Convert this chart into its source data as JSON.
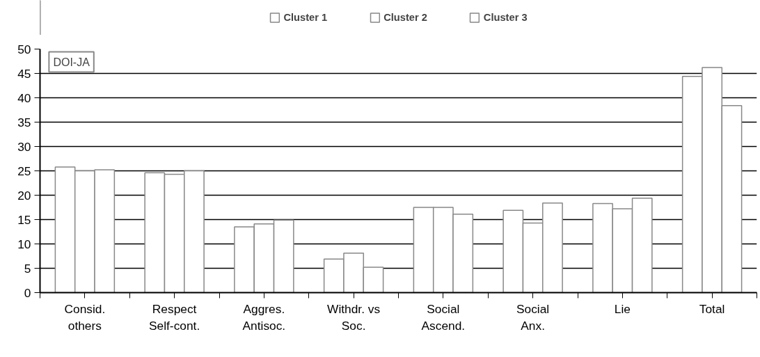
{
  "chart_data": {
    "type": "bar",
    "categories": [
      "Consid.\nothers",
      "Respect\nSelf-cont.",
      "Aggres.\nAntisoc.",
      "Withdr. vs\nSoc.",
      "Social\nAscend.",
      "Social\nAnx.",
      "Lie",
      "Total"
    ],
    "series": [
      {
        "name": "Cluster 1",
        "color": "#ffffff",
        "values": [
          25.8,
          24.6,
          13.5,
          6.9,
          17.5,
          16.9,
          18.3,
          44.4
        ]
      },
      {
        "name": "Cluster 2",
        "color": "#ffffff",
        "values": [
          25.0,
          24.3,
          14.1,
          8.1,
          17.5,
          14.3,
          17.2,
          46.2
        ]
      },
      {
        "name": "Cluster 3",
        "color": "#ffffff",
        "values": [
          25.2,
          25.0,
          14.9,
          5.2,
          16.1,
          18.4,
          19.4,
          38.4
        ]
      }
    ],
    "ylim": [
      0,
      50
    ],
    "yticks": [
      0,
      5,
      10,
      15,
      20,
      25,
      30,
      35,
      40,
      45,
      50
    ],
    "grid": "y",
    "legend": "top",
    "annotations": [
      "DOI-JA"
    ]
  }
}
